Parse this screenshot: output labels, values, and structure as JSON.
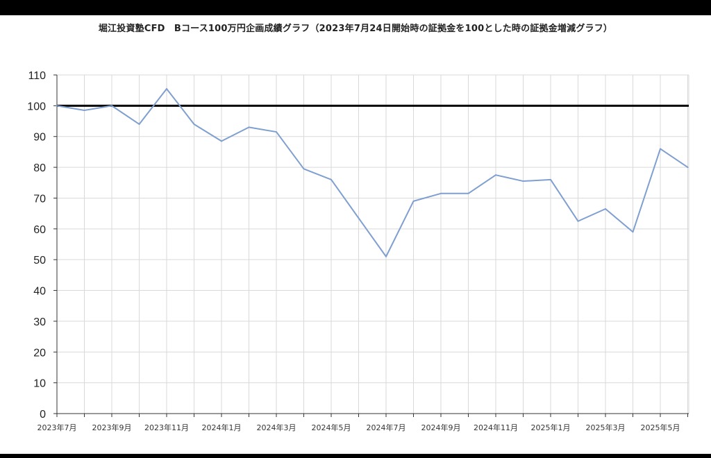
{
  "chart_data": {
    "type": "line",
    "title": "堀江投資塾CFD　Bコース100万円企画成績グラフ（2023年7月24日開始時の証拠金を100とした時の証拠金増減グラフ）",
    "xlabel": "",
    "ylabel": "",
    "ylim": [
      0,
      110
    ],
    "yticks": [
      0,
      10,
      20,
      30,
      40,
      50,
      60,
      70,
      80,
      90,
      100,
      110
    ],
    "x_tick_labels": [
      "2023年7月",
      "2023年9月",
      "2023年11月",
      "2024年1月",
      "2024年3月",
      "2024年5月",
      "2024年7月",
      "2024年9月",
      "2024年11月",
      "2025年1月",
      "2025年3月",
      "2025年5月"
    ],
    "x_months": [
      "2023年7月",
      "2023年8月",
      "2023年9月",
      "2023年10月",
      "2023年11月",
      "2023年12月",
      "2024年1月",
      "2024年2月",
      "2024年3月",
      "2024年4月",
      "2024年5月",
      "2024年6月",
      "2024年7月",
      "2024年8月",
      "2024年9月",
      "2024年10月",
      "2024年11月",
      "2024年12月",
      "2025年1月",
      "2025年2月",
      "2025年3月",
      "2025年4月",
      "2025年5月",
      "2025年6月"
    ],
    "series": [
      {
        "values": [
          100,
          98.5,
          100,
          94,
          105.5,
          94,
          88.5,
          93,
          91.5,
          79.5,
          76,
          63.5,
          51,
          69,
          71.5,
          71.5,
          77.5,
          75.5,
          76,
          62.5,
          66.5,
          59,
          86,
          80
        ]
      }
    ],
    "reference_line": 100,
    "grid": true,
    "colors": {
      "line": "#7f9fd0",
      "reference": "#000000",
      "grid": "#d9d9d9"
    }
  }
}
